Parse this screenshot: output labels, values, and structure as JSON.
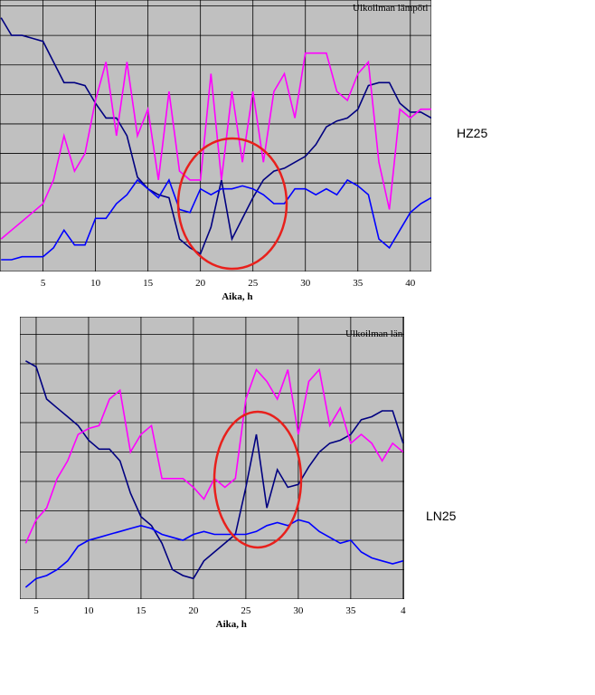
{
  "chart_data": [
    {
      "type": "line",
      "title": "Ulkoilman lämpöti",
      "label": "HZ25",
      "x_label": "Aika, h",
      "x": [
        1,
        2,
        3,
        4,
        5,
        6,
        7,
        8,
        9,
        10,
        11,
        12,
        13,
        14,
        15,
        16,
        17,
        18,
        19,
        20,
        21,
        22,
        23,
        24,
        25,
        26,
        27,
        28,
        29,
        30,
        31,
        32,
        33,
        34,
        35,
        36,
        37,
        38,
        39,
        40,
        41,
        42
      ],
      "xlim": [
        0.9,
        42
      ],
      "xticks": [
        5,
        10,
        15,
        20,
        25,
        30,
        35,
        40
      ],
      "ylim": [
        0,
        9.2
      ],
      "yticks": [
        1,
        2,
        3,
        4,
        5,
        6,
        7,
        8,
        9
      ],
      "grid": true,
      "series": [
        {
          "color": "#000080",
          "values": [
            8.6,
            8.0,
            8.0,
            7.9,
            7.8,
            7.1,
            6.4,
            6.4,
            6.3,
            5.7,
            5.2,
            5.2,
            4.6,
            3.2,
            2.8,
            2.6,
            2.5,
            1.1,
            0.8,
            0.6,
            1.5,
            3.1,
            1.1,
            1.8,
            2.5,
            3.1,
            3.4,
            3.5,
            3.7,
            3.9,
            4.3,
            4.9,
            5.1,
            5.2,
            5.5,
            6.3,
            6.4,
            6.4,
            5.7,
            5.4,
            5.4,
            5.2
          ]
        },
        {
          "color": "#ff00ff",
          "values": [
            1.1,
            1.4,
            1.7,
            2.0,
            2.3,
            3.1,
            4.6,
            3.4,
            4.0,
            5.8,
            7.1,
            4.6,
            7.1,
            4.6,
            5.5,
            3.1,
            6.1,
            3.4,
            3.1,
            3.1,
            6.7,
            3.1,
            6.1,
            3.7,
            6.1,
            3.7,
            6.1,
            6.7,
            5.2,
            7.4,
            7.4,
            7.4,
            6.1,
            5.8,
            6.7,
            7.1,
            3.7,
            2.1,
            5.5,
            5.2,
            5.5,
            5.5
          ]
        },
        {
          "color": "#0000ff",
          "values": [
            0.4,
            0.4,
            0.5,
            0.5,
            0.5,
            0.8,
            1.4,
            0.9,
            0.9,
            1.8,
            1.8,
            2.3,
            2.6,
            3.1,
            2.8,
            2.5,
            3.1,
            2.1,
            2.0,
            2.8,
            2.6,
            2.8,
            2.8,
            2.9,
            2.8,
            2.6,
            2.3,
            2.3,
            2.8,
            2.8,
            2.6,
            2.8,
            2.6,
            3.1,
            2.9,
            2.6,
            1.1,
            0.8,
            1.4,
            2.0,
            2.3,
            2.5
          ]
        }
      ]
    },
    {
      "type": "line",
      "title": "Ulkoilman län",
      "label": "LN25",
      "x_label": "Aika, h",
      "x": [
        4,
        5,
        6,
        7,
        8,
        9,
        10,
        11,
        12,
        13,
        14,
        15,
        16,
        17,
        18,
        19,
        20,
        21,
        22,
        23,
        24,
        25,
        26,
        27,
        28,
        29,
        30,
        31,
        32,
        33,
        34,
        35,
        36,
        37,
        38,
        39,
        40
      ],
      "xlim": [
        3.45,
        40.1
      ],
      "xticks": [
        5,
        10,
        15,
        20,
        25,
        30,
        35,
        {
          "value": 40,
          "label": "4"
        }
      ],
      "ylim": [
        0,
        9.6
      ],
      "yticks": [
        1,
        2,
        3,
        4,
        5,
        6,
        7,
        8,
        9
      ],
      "grid": true,
      "series": [
        {
          "color": "#000080",
          "values": [
            8.1,
            7.9,
            6.8,
            6.5,
            6.2,
            5.9,
            5.4,
            5.1,
            5.1,
            4.7,
            3.6,
            2.8,
            2.5,
            1.9,
            1.0,
            0.8,
            0.7,
            1.3,
            1.6,
            1.9,
            2.2,
            3.8,
            5.6,
            3.1,
            4.4,
            3.8,
            3.9,
            4.5,
            5.0,
            5.3,
            5.4,
            5.6,
            6.1,
            6.2,
            6.4,
            6.4,
            5.3
          ]
        },
        {
          "color": "#ff00ff",
          "values": [
            1.9,
            2.7,
            3.1,
            4.1,
            4.7,
            5.6,
            5.8,
            5.9,
            6.8,
            7.1,
            5.0,
            5.6,
            5.9,
            4.1,
            4.1,
            4.1,
            3.8,
            3.4,
            4.1,
            3.8,
            4.1,
            6.8,
            7.8,
            7.4,
            6.8,
            7.8,
            5.6,
            7.4,
            7.8,
            5.9,
            6.5,
            5.3,
            5.6,
            5.3,
            4.7,
            5.3,
            5.0
          ]
        },
        {
          "color": "#0000ff",
          "values": [
            0.4,
            0.7,
            0.8,
            1.0,
            1.3,
            1.8,
            2.0,
            2.1,
            2.2,
            2.3,
            2.4,
            2.5,
            2.4,
            2.2,
            2.1,
            2.0,
            2.2,
            2.3,
            2.2,
            2.2,
            2.2,
            2.2,
            2.3,
            2.5,
            2.6,
            2.5,
            2.7,
            2.6,
            2.3,
            2.1,
            1.9,
            2.0,
            1.6,
            1.4,
            1.3,
            1.2,
            1.3
          ]
        }
      ]
    }
  ]
}
